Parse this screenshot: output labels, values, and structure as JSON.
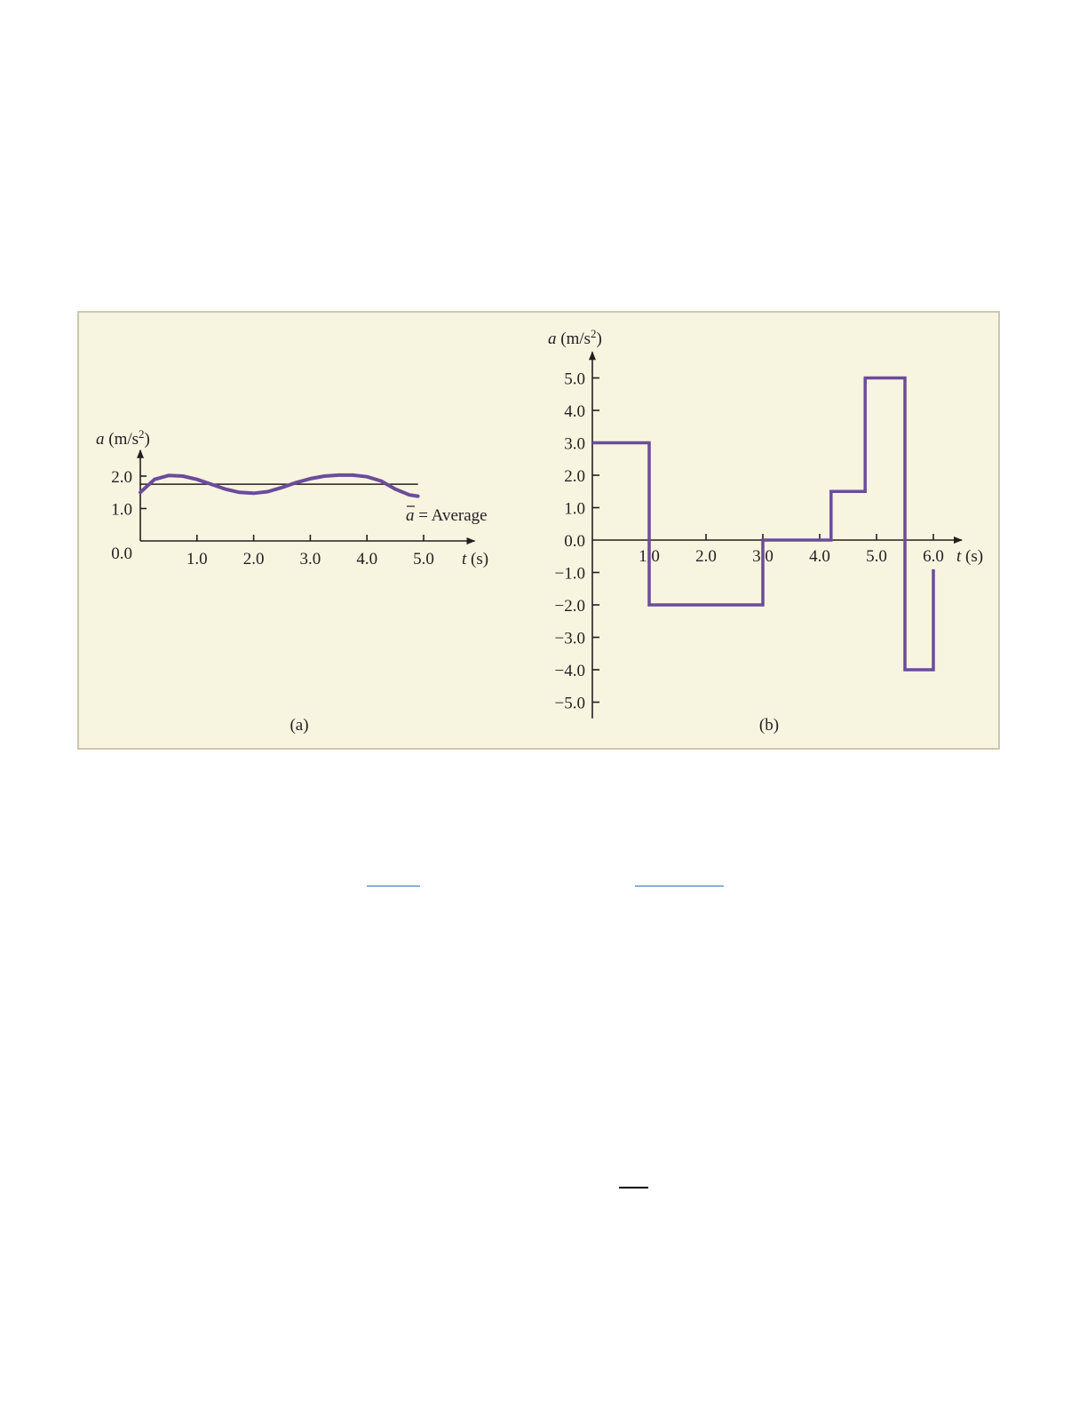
{
  "chart_data": [
    {
      "type": "line",
      "panel_label": "(a)",
      "xlabel_var": "t",
      "xlabel_unit": " (s)",
      "ylabel_var": "a",
      "ylabel_unit": " (m/s",
      "ylabel_exp": "2",
      "ylabel_close": ")",
      "origin_label": "0.0",
      "xlim": [
        0,
        5.9
      ],
      "ylim": [
        0,
        2.8
      ],
      "x_ticks": [
        {
          "value": 1.0,
          "label": "1.0"
        },
        {
          "value": 2.0,
          "label": "2.0"
        },
        {
          "value": 3.0,
          "label": "3.0"
        },
        {
          "value": 4.0,
          "label": "4.0"
        },
        {
          "value": 5.0,
          "label": "5.0"
        }
      ],
      "y_ticks": [
        {
          "value": 1.0,
          "label": "1.0"
        },
        {
          "value": 2.0,
          "label": "2.0"
        }
      ],
      "average": {
        "value": 1.75,
        "x_end": 4.9,
        "symbol": "a",
        "label": " = Average"
      },
      "series": [
        {
          "color": "#6b4c9a",
          "x": [
            0.0,
            0.25,
            0.5,
            0.75,
            1.0,
            1.25,
            1.5,
            1.75,
            2.0,
            2.25,
            2.5,
            2.75,
            3.0,
            3.25,
            3.5,
            3.75,
            4.0,
            4.25,
            4.5,
            4.75,
            4.9
          ],
          "y": [
            1.5,
            1.9,
            2.02,
            2.0,
            1.9,
            1.75,
            1.6,
            1.5,
            1.47,
            1.52,
            1.65,
            1.8,
            1.92,
            2.0,
            2.03,
            2.03,
            1.98,
            1.85,
            1.6,
            1.42,
            1.38
          ]
        }
      ]
    },
    {
      "type": "line",
      "panel_label": "(b)",
      "xlabel_var": "t",
      "xlabel_unit": " (s)",
      "ylabel_var": "a",
      "ylabel_unit": " (m/s",
      "ylabel_exp": "2",
      "ylabel_close": ")",
      "xlim": [
        0,
        6.5
      ],
      "ylim": [
        -5.5,
        5.8
      ],
      "x_ticks": [
        {
          "value": 1.0,
          "label": "1.0"
        },
        {
          "value": 2.0,
          "label": "2.0"
        },
        {
          "value": 3.0,
          "label": "3.0"
        },
        {
          "value": 4.0,
          "label": "4.0"
        },
        {
          "value": 5.0,
          "label": "5.0"
        },
        {
          "value": 6.0,
          "label": "6.0"
        }
      ],
      "y_ticks": [
        {
          "value": 5.0,
          "label": "5.0"
        },
        {
          "value": 4.0,
          "label": "4.0"
        },
        {
          "value": 3.0,
          "label": "3.0"
        },
        {
          "value": 2.0,
          "label": "2.0"
        },
        {
          "value": 1.0,
          "label": "1.0"
        },
        {
          "value": 0.0,
          "label": "0.0"
        },
        {
          "value": -1.0,
          "label": "−1.0"
        },
        {
          "value": -2.0,
          "label": "−2.0"
        },
        {
          "value": -3.0,
          "label": "−3.0"
        },
        {
          "value": -4.0,
          "label": "−4.0"
        },
        {
          "value": -5.0,
          "label": "−5.0"
        }
      ],
      "series": [
        {
          "color": "#6b4c9a",
          "x": [
            0.0,
            1.0,
            1.0,
            3.0,
            3.0,
            4.2,
            4.2,
            4.8,
            4.8,
            5.5,
            5.5,
            6.0,
            6.0
          ],
          "y": [
            3.0,
            3.0,
            -2.0,
            -2.0,
            0.0,
            0.0,
            1.5,
            1.5,
            5.0,
            5.0,
            -4.0,
            -4.0,
            -0.9
          ]
        }
      ]
    }
  ]
}
